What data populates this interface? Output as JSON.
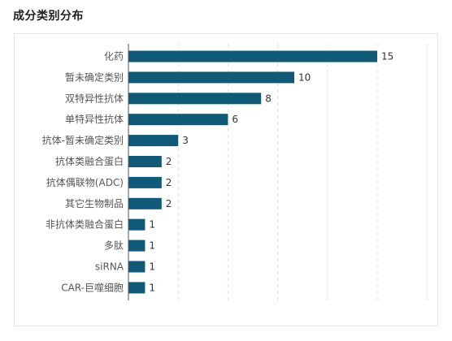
{
  "page": {
    "title": "成分类别分布"
  },
  "chart_data": {
    "type": "bar",
    "orientation": "horizontal",
    "title": "成分类别分布",
    "xlabel": "",
    "ylabel": "",
    "categories": [
      "化药",
      "暂未确定类别",
      "双特异性抗体",
      "单特异性抗体",
      "抗体-暂未确定类别",
      "抗体类融合蛋白",
      "抗体偶联物(ADC)",
      "其它生物制品",
      "非抗体类融合蛋白",
      "多肽",
      "siRNA",
      "CAR-巨噬细胞"
    ],
    "values": [
      15,
      10,
      8,
      6,
      3,
      2,
      2,
      2,
      1,
      1,
      1,
      1
    ],
    "xlim": [
      0,
      18
    ],
    "grid": "vertical-dashed",
    "bar_color": "#0e5a78",
    "grid_color": "#e0e0e0",
    "axis_color": "#555555"
  }
}
